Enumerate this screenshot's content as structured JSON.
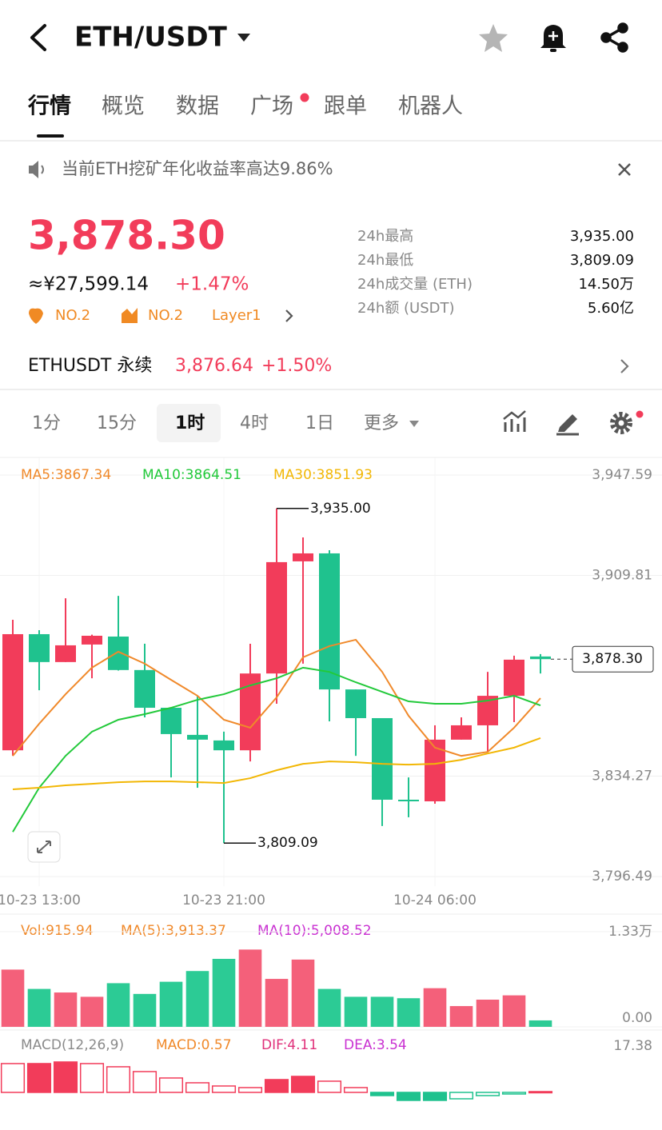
{
  "header": {
    "title": "ETH/USDT"
  },
  "tabs": [
    "行情",
    "概览",
    "数据",
    "广场",
    "跟单",
    "机器人"
  ],
  "notice": "当前ETH挖矿年化收益率高达9.86%",
  "ticker": {
    "price": "3,878.30",
    "cny": "≈¥27,599.14",
    "change": "+1.47%",
    "badges": [
      "NO.2",
      "NO.2",
      "Layer1"
    ]
  },
  "stats": [
    [
      "24h最高",
      "3,935.00"
    ],
    [
      "24h最低",
      "3,809.09"
    ],
    [
      "24h成交量 (ETH)",
      "14.50万"
    ],
    [
      "24h额 (USDT)",
      "5.60亿"
    ]
  ],
  "perp": {
    "name": "ETHUSDT 永续",
    "price": "3,876.64",
    "change": "+1.50%"
  },
  "intervals": [
    "1分",
    "15分",
    "1时",
    "4时",
    "1日",
    "更多"
  ],
  "chart": {
    "type": "candlestick",
    "up_color": "#f23c5a",
    "down_color": "#1fc28e",
    "ylim": [
      3792.9,
      3954.2
    ],
    "yticks": [
      {
        "value": 3947.59,
        "label": "3,947.59"
      },
      {
        "value": 3909.81,
        "label": "3,909.81"
      },
      {
        "value": 3834.27,
        "label": "3,834.27"
      },
      {
        "value": 3796.49,
        "label": "3,796.49"
      }
    ],
    "grid": true,
    "categories": [
      null,
      "10-23 13:00",
      null,
      null,
      null,
      null,
      null,
      null,
      "10-23 21:00",
      null,
      null,
      null,
      null,
      null,
      null,
      null,
      "10-24 06:00",
      null,
      null,
      null,
      null
    ],
    "candles": [
      {
        "o": 3844.0,
        "h": 3893.1,
        "l": 3841.9,
        "c": 3887.7
      },
      {
        "o": 3887.7,
        "h": 3889.2,
        "l": 3866.6,
        "c": 3877.2
      },
      {
        "o": 3877.2,
        "h": 3901.2,
        "l": 3877.2,
        "c": 3883.5
      },
      {
        "o": 3883.8,
        "h": 3887.5,
        "l": 3871.1,
        "c": 3887.1
      },
      {
        "o": 3886.8,
        "h": 3902.1,
        "l": 3874.0,
        "c": 3874.2
      },
      {
        "o": 3874.2,
        "h": 3884.1,
        "l": 3856.4,
        "c": 3860.0
      },
      {
        "o": 3860.0,
        "h": 3860.0,
        "l": 3833.8,
        "c": 3850.1
      },
      {
        "o": 3849.8,
        "h": 3864.5,
        "l": 3829.9,
        "c": 3848.0
      },
      {
        "o": 3847.7,
        "h": 3851.0,
        "l": 3809.09,
        "c": 3844.0
      },
      {
        "o": 3844.0,
        "h": 3884.1,
        "l": 3839.8,
        "c": 3872.9
      },
      {
        "o": 3872.9,
        "h": 3935.0,
        "l": 3861.5,
        "c": 3914.8
      },
      {
        "o": 3915.1,
        "h": 3924.1,
        "l": 3876.6,
        "c": 3918.1
      },
      {
        "o": 3918.1,
        "h": 3919.3,
        "l": 3854.9,
        "c": 3866.9
      },
      {
        "o": 3866.9,
        "h": 3866.9,
        "l": 3841.9,
        "c": 3856.1
      },
      {
        "o": 3856.1,
        "h": 3856.1,
        "l": 3815.5,
        "c": 3825.4
      },
      {
        "o": 3825.4,
        "h": 3833.8,
        "l": 3818.8,
        "c": 3825.0
      },
      {
        "o": 3824.8,
        "h": 3853.4,
        "l": 3823.9,
        "c": 3848.0
      },
      {
        "o": 3848.0,
        "h": 3856.4,
        "l": 3848.0,
        "c": 3853.4
      },
      {
        "o": 3853.4,
        "h": 3873.5,
        "l": 3843.4,
        "c": 3864.5
      },
      {
        "o": 3864.5,
        "h": 3879.6,
        "l": 3854.6,
        "c": 3878.1
      },
      {
        "o": 3879.3,
        "h": 3880.2,
        "l": 3872.9,
        "c": 3878.3
      }
    ],
    "ma": [
      {
        "name": "MA5:3867.34",
        "color": "#f0892a",
        "values": [
          3841.9,
          3854.0,
          3865.1,
          3875.1,
          3881.1,
          3876.6,
          3870.5,
          3864.5,
          3855.5,
          3852.5,
          3863.9,
          3879.0,
          3883.2,
          3885.6,
          3873.5,
          3857.0,
          3845.0,
          3841.9,
          3843.4,
          3852.5,
          3863.6
        ]
      },
      {
        "name": "MA10:3864.51",
        "color": "#22c93a",
        "values": [
          3813.3,
          3829.9,
          3841.9,
          3851.0,
          3855.5,
          3857.6,
          3860.0,
          3863.0,
          3865.1,
          3868.4,
          3871.1,
          3875.1,
          3873.5,
          3869.6,
          3866.0,
          3862.4,
          3861.5,
          3861.5,
          3862.7,
          3864.5,
          3860.9
        ]
      },
      {
        "name": "MA30:3851.93",
        "color": "#f2b705",
        "values": [
          3829.3,
          3829.9,
          3830.8,
          3831.4,
          3832.0,
          3832.3,
          3832.3,
          3832.0,
          3831.7,
          3833.5,
          3836.5,
          3838.9,
          3839.8,
          3839.5,
          3838.9,
          3838.6,
          3838.9,
          3840.4,
          3842.8,
          3845.0,
          3848.6
        ]
      }
    ],
    "high_label": {
      "value": 3935.0,
      "label": "3,935.00"
    },
    "low_label": {
      "value": 3809.09,
      "label": "3,809.09"
    },
    "last_price": {
      "value": 3878.3,
      "label": "3,878.30"
    }
  },
  "volume": {
    "legend": [
      {
        "text": "Vol:915.94",
        "color": "#f0892a"
      },
      {
        "text": "MA(5):3,913.37",
        "color": "#f0892a"
      },
      {
        "text": "MA(10):5,008.52",
        "color": "#c930d1"
      }
    ],
    "ylim": [
      0,
      1.33
    ],
    "yticks": [
      {
        "value": 1.33,
        "label": "1.33万"
      },
      {
        "value": 0,
        "label": "0.00"
      }
    ],
    "values": [
      0.8,
      0.53,
      0.48,
      0.42,
      0.61,
      0.46,
      0.63,
      0.78,
      0.95,
      1.08,
      0.67,
      0.94,
      0.53,
      0.42,
      0.42,
      0.4,
      0.54,
      0.29,
      0.38,
      0.44,
      0.09
    ]
  },
  "macd": {
    "legend": [
      {
        "text": "MACD(12,26,9)",
        "color": "#8a8a8a"
      },
      {
        "text": "MACD:0.57",
        "color": "#f0892a"
      },
      {
        "text": "DIF:4.11",
        "color": "#e0307a"
      },
      {
        "text": "DEA:3.54",
        "color": "#c930d1"
      }
    ],
    "ylim": [
      -14.1,
      17.38
    ],
    "yticks": [
      17.38
    ],
    "values": [
      10.8,
      10.8,
      11.4,
      10.8,
      9.6,
      7.8,
      5.4,
      3.6,
      2.4,
      1.8,
      4.8,
      6.0,
      4.2,
      1.8,
      -1.2,
      -3.0,
      -3.0,
      -2.4,
      -1.2,
      -0.6,
      0.3
    ]
  }
}
